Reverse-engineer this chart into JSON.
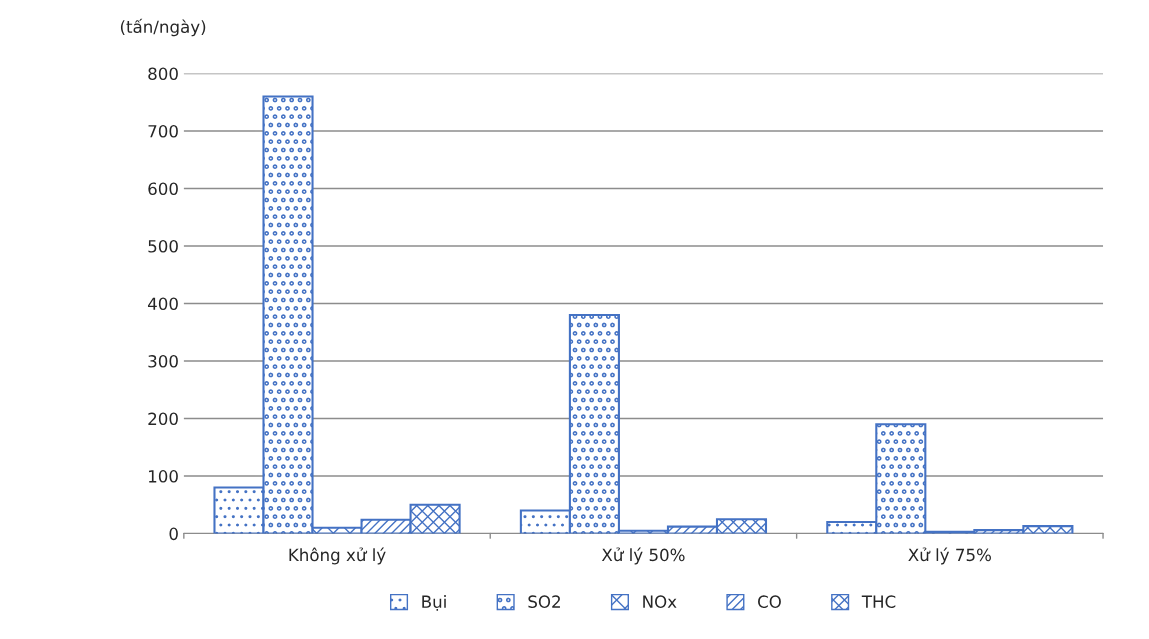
{
  "chart_data": {
    "type": "bar",
    "ylabel": "(tấn/ngày)",
    "categories": [
      "Không xử lý",
      "Xử lý 50%",
      "Xử lý 75%"
    ],
    "series": [
      {
        "name": "Bụi",
        "color": "#4472c4",
        "values": [
          80,
          40,
          20
        ]
      },
      {
        "name": "SO2",
        "color": "#4472c4",
        "values": [
          760,
          380,
          190
        ]
      },
      {
        "name": "NOx",
        "color": "#4472c4",
        "values": [
          10,
          5,
          3
        ]
      },
      {
        "name": "CO",
        "color": "#4472c4",
        "values": [
          24,
          12,
          6
        ]
      },
      {
        "name": "THC",
        "color": "#4472c4",
        "values": [
          50,
          25,
          13
        ]
      }
    ],
    "ylim": [
      0,
      800
    ],
    "yticks": [
      0,
      100,
      200,
      300,
      400,
      500,
      600,
      700,
      800
    ],
    "grid": "y",
    "legend": "bottom"
  }
}
